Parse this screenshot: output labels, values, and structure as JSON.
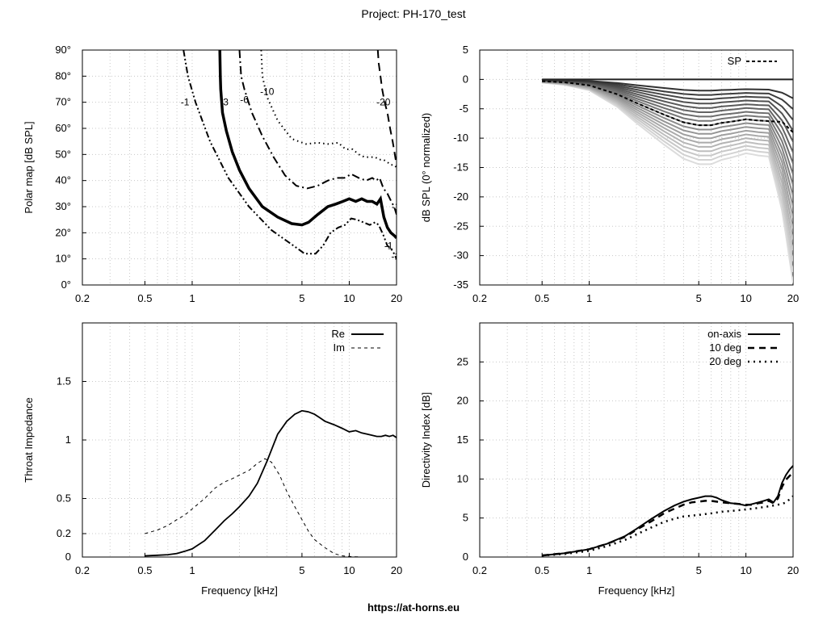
{
  "title": "Project: PH-170_test",
  "footer": "https://at-horns.eu",
  "chart_data": [
    {
      "id": "polar_map",
      "type": "contour",
      "ylabel": "Polar map [dB SPL]",
      "xlabel": "",
      "xscale": "log",
      "xlim": [
        0.2,
        20
      ],
      "ylim": [
        0,
        90
      ],
      "xticks": [
        0.2,
        0.5,
        1,
        5,
        10,
        20
      ],
      "xticklabels": [
        "0.2",
        "0.5",
        "1",
        "5",
        "10",
        "20"
      ],
      "yticks": [
        0,
        10,
        20,
        30,
        40,
        50,
        60,
        70,
        80,
        90
      ],
      "yticklabels": [
        "0°",
        "10°",
        "20°",
        "30°",
        "40°",
        "50°",
        "60°",
        "70°",
        "80°",
        "90°"
      ],
      "grid": true,
      "series": [
        {
          "name": "-1",
          "style": "dash-dot-dot",
          "x": [
            0.88,
            0.94,
            1.05,
            1.3,
            1.7,
            2.3,
            3.2,
            4.2,
            5.2,
            6.1,
            6.8,
            7.6,
            8.5,
            9.4,
            10.3,
            11.2,
            12.3,
            13.5,
            14.6,
            15.4,
            16.5,
            17.5,
            18.4,
            19.3,
            20
          ],
          "y": [
            90,
            80,
            70,
            55,
            41,
            30,
            21,
            16,
            12,
            12,
            15,
            20,
            22,
            23,
            25.5,
            25,
            24,
            23,
            24,
            23,
            19,
            15,
            14,
            12,
            10
          ]
        },
        {
          "name": "-3",
          "style": "solid-thick",
          "x": [
            1.5,
            1.51,
            1.52,
            1.56,
            1.65,
            1.8,
            2.0,
            2.3,
            2.8,
            3.5,
            4.3,
            5.0,
            5.5,
            6.3,
            7.3,
            8.2,
            9.1,
            10.0,
            11.0,
            12.0,
            13.0,
            14.0,
            15.0,
            15.8,
            16.6,
            17.5,
            18.4,
            19.3,
            20
          ],
          "y": [
            90,
            80,
            75,
            66,
            59,
            51,
            44,
            37,
            30,
            26,
            23.5,
            23,
            24,
            27,
            30,
            31,
            32,
            33,
            32,
            33,
            32,
            32,
            31,
            33,
            26,
            22,
            20,
            19,
            18
          ]
        },
        {
          "name": "-6",
          "style": "dash-dot",
          "x": [
            2.0,
            2.05,
            2.15,
            2.4,
            2.8,
            3.3,
            3.9,
            4.6,
            5.4,
            6.3,
            7.3,
            8.3,
            9.3,
            10.3,
            11.5,
            12.8,
            14.0,
            14.8,
            15.6,
            16.5,
            17.5,
            18.5,
            19.3,
            20
          ],
          "y": [
            90,
            80,
            75,
            66,
            57,
            49,
            42,
            38,
            37,
            38,
            40,
            41,
            41,
            42.5,
            41,
            40,
            41,
            40,
            41,
            37,
            35,
            32,
            30,
            27
          ]
        },
        {
          "name": "-10",
          "style": "dotted",
          "x": [
            2.75,
            2.8,
            3.0,
            3.5,
            4.3,
            5.3,
            6.3,
            7.3,
            8.5,
            9.5,
            10.5,
            11.5,
            12.5,
            13.5,
            14.6,
            15.6,
            16.5,
            17.5,
            18.5,
            19.3,
            20
          ],
          "y": [
            90,
            80,
            72,
            63,
            56,
            54,
            54.5,
            54,
            54.5,
            52,
            52,
            50,
            49,
            49,
            49,
            48,
            48,
            47,
            46,
            46,
            45
          ]
        },
        {
          "name": "-20",
          "style": "long-dash",
          "x": [
            15.2,
            15.4,
            15.8,
            16.2,
            16.8,
            17.5,
            18.2,
            18.9,
            19.5,
            20
          ],
          "y": [
            90,
            85,
            80,
            75,
            70,
            66,
            60,
            55,
            50,
            46
          ]
        }
      ],
      "contour_labels": [
        {
          "text": "-1",
          "x": 0.9,
          "y": 70
        },
        {
          "text": "-3",
          "x": 1.6,
          "y": 70
        },
        {
          "text": "-6",
          "x": 2.15,
          "y": 71
        },
        {
          "text": "-10",
          "x": 3.0,
          "y": 74
        },
        {
          "text": "-20",
          "x": 16.5,
          "y": 70
        },
        {
          "text": "-1",
          "x": 17.8,
          "y": 15
        },
        {
          "text": "-1",
          "x": 19.7,
          "y": 11
        },
        {
          "text": "-1",
          "x": 19.8,
          "y": 30
        }
      ]
    },
    {
      "id": "normalized_spl",
      "type": "line",
      "ylabel": "dB SPL (0° normalized)",
      "xlabel": "",
      "xscale": "log",
      "xlim": [
        0.2,
        20
      ],
      "ylim": [
        -35,
        5
      ],
      "xticks": [
        0.2,
        0.5,
        1,
        5,
        10,
        20
      ],
      "xticklabels": [
        "0.2",
        "0.5",
        "1",
        "5",
        "10",
        "20"
      ],
      "yticks": [
        -35,
        -30,
        -25,
        -20,
        -15,
        -10,
        -5,
        0,
        5
      ],
      "yticklabels": [
        "-35",
        "-30",
        "-25",
        "-20",
        "-15",
        "-10",
        "-5",
        "0",
        "5"
      ],
      "grid": true,
      "legend": "top-right",
      "x": [
        0.5,
        0.7,
        1.0,
        1.5,
        2.0,
        3.0,
        4.0,
        5.0,
        6.0,
        7.0,
        8.0,
        9.0,
        10.0,
        11.0,
        12.0,
        14.0,
        16.0,
        17.0,
        18.0,
        19.0,
        20.0
      ],
      "series": [
        {
          "name": "SP",
          "style": "dashed-black",
          "y": [
            -0.3,
            -0.5,
            -1.0,
            -2.5,
            -4.0,
            -6.0,
            -7.3,
            -7.8,
            -7.8,
            -7.4,
            -7.2,
            -7.0,
            -6.8,
            -6.9,
            -7.0,
            -7.1,
            -7.2,
            -7.2,
            -7.8,
            -8.5,
            -9.0
          ]
        }
      ],
      "angle_curves": "0° to 90° in 5° steps, darker = smaller angle"
    },
    {
      "id": "throat_impedance",
      "type": "line",
      "ylabel": "Throat Impedance",
      "xlabel": "Frequency [kHz]",
      "xscale": "log",
      "xlim": [
        0.2,
        20
      ],
      "ylim": [
        0,
        2
      ],
      "xticks": [
        0.2,
        0.5,
        1,
        5,
        10,
        20
      ],
      "xticklabels": [
        "0.2",
        "0.5",
        "1",
        "5",
        "10",
        "20"
      ],
      "yticks": [
        0,
        0.2,
        0.5,
        1,
        1.5
      ],
      "yticklabels": [
        "0",
        "0.2",
        "0.5",
        "1",
        "1.5"
      ],
      "grid": true,
      "legend": "top-right",
      "series": [
        {
          "name": "Re",
          "style": "solid",
          "x": [
            0.5,
            0.6,
            0.7,
            0.8,
            0.9,
            1.0,
            1.2,
            1.4,
            1.6,
            1.8,
            2.0,
            2.3,
            2.6,
            3.0,
            3.5,
            4.0,
            4.5,
            5.0,
            5.5,
            6.0,
            6.5,
            7.0,
            8.0,
            9.0,
            10.0,
            11.0,
            12.0,
            13.0,
            14.0,
            15.0,
            16.0,
            17.0,
            18.0,
            19.0,
            20.0
          ],
          "y": [
            0.01,
            0.015,
            0.02,
            0.03,
            0.05,
            0.07,
            0.14,
            0.23,
            0.31,
            0.37,
            0.43,
            0.52,
            0.63,
            0.82,
            1.05,
            1.16,
            1.22,
            1.25,
            1.24,
            1.22,
            1.19,
            1.16,
            1.13,
            1.1,
            1.07,
            1.08,
            1.06,
            1.05,
            1.04,
            1.03,
            1.03,
            1.04,
            1.03,
            1.04,
            1.02
          ]
        },
        {
          "name": "Im",
          "style": "dashed",
          "x": [
            0.5,
            0.6,
            0.7,
            0.8,
            0.9,
            1.0,
            1.2,
            1.4,
            1.6,
            1.8,
            2.0,
            2.3,
            2.6,
            2.9,
            3.2,
            3.6,
            4.0,
            4.5,
            5.0,
            5.5,
            6.0,
            7.0,
            8.0,
            9.0,
            10.0,
            11.0,
            12.0,
            14.0,
            16.0,
            18.0,
            20.0
          ],
          "y": [
            0.2,
            0.23,
            0.27,
            0.32,
            0.36,
            0.41,
            0.5,
            0.59,
            0.64,
            0.67,
            0.7,
            0.74,
            0.8,
            0.84,
            0.81,
            0.7,
            0.56,
            0.43,
            0.32,
            0.22,
            0.15,
            0.08,
            0.03,
            0.01,
            0.005,
            0.002,
            0.0,
            0.0,
            0.0,
            0.0,
            0.0
          ]
        }
      ]
    },
    {
      "id": "directivity_index",
      "type": "line",
      "ylabel": "Directivity Index [dB]",
      "xlabel": "Frequency [kHz]",
      "xscale": "log",
      "xlim": [
        0.2,
        20
      ],
      "ylim": [
        0,
        30
      ],
      "xticks": [
        0.2,
        0.5,
        1,
        5,
        10,
        20
      ],
      "xticklabels": [
        "0.2",
        "0.5",
        "1",
        "5",
        "10",
        "20"
      ],
      "yticks": [
        0,
        5,
        10,
        15,
        20,
        25
      ],
      "yticklabels": [
        "0",
        "5",
        "10",
        "15",
        "20",
        "25"
      ],
      "grid": true,
      "legend": "top-right",
      "series": [
        {
          "name": "on-axis",
          "style": "solid",
          "x": [
            0.5,
            0.7,
            1.0,
            1.3,
            1.7,
            2.0,
            2.5,
            3.0,
            3.5,
            4.0,
            4.5,
            5.0,
            5.5,
            6.0,
            6.5,
            7.0,
            8.0,
            9.0,
            10.0,
            11.0,
            12.0,
            13.0,
            14.0,
            15.0,
            16.0,
            17.0,
            18.0,
            19.0,
            20.0
          ],
          "y": [
            0.2,
            0.5,
            1.0,
            1.7,
            2.7,
            3.6,
            4.9,
            5.9,
            6.6,
            7.1,
            7.4,
            7.6,
            7.8,
            7.8,
            7.6,
            7.3,
            6.9,
            6.8,
            6.6,
            6.8,
            7.0,
            7.2,
            7.4,
            7.0,
            7.8,
            9.5,
            10.5,
            11.2,
            11.7
          ]
        },
        {
          "name": "10 deg",
          "style": "dashed",
          "x": [
            0.5,
            0.7,
            1.0,
            1.3,
            1.7,
            2.0,
            2.5,
            3.0,
            3.5,
            4.0,
            4.5,
            5.0,
            5.5,
            6.0,
            6.5,
            7.0,
            8.0,
            9.0,
            10.0,
            11.0,
            12.0,
            13.0,
            14.0,
            15.0,
            16.0,
            17.0,
            18.0,
            19.0,
            20.0
          ],
          "y": [
            0.2,
            0.5,
            1.0,
            1.7,
            2.6,
            3.5,
            4.6,
            5.6,
            6.2,
            6.7,
            7.0,
            7.1,
            7.2,
            7.2,
            7.1,
            7.0,
            6.9,
            6.8,
            6.7,
            6.7,
            6.9,
            7.0,
            7.2,
            6.9,
            7.5,
            9.0,
            9.9,
            10.4,
            10.8
          ]
        },
        {
          "name": "20 deg",
          "style": "dotted",
          "x": [
            0.5,
            0.7,
            1.0,
            1.3,
            1.7,
            2.0,
            2.5,
            3.0,
            3.5,
            4.0,
            4.5,
            5.0,
            5.5,
            6.0,
            7.0,
            8.0,
            9.0,
            10.0,
            11.0,
            12.0,
            13.0,
            14.0,
            15.0,
            16.0,
            17.0,
            18.0,
            19.0,
            20.0
          ],
          "y": [
            0.2,
            0.4,
            0.8,
            1.4,
            2.2,
            2.9,
            3.8,
            4.5,
            4.9,
            5.2,
            5.3,
            5.4,
            5.5,
            5.6,
            5.8,
            5.9,
            6.0,
            6.1,
            6.2,
            6.3,
            6.4,
            6.5,
            6.6,
            6.7,
            6.8,
            7.0,
            7.4,
            7.8
          ]
        }
      ]
    }
  ]
}
